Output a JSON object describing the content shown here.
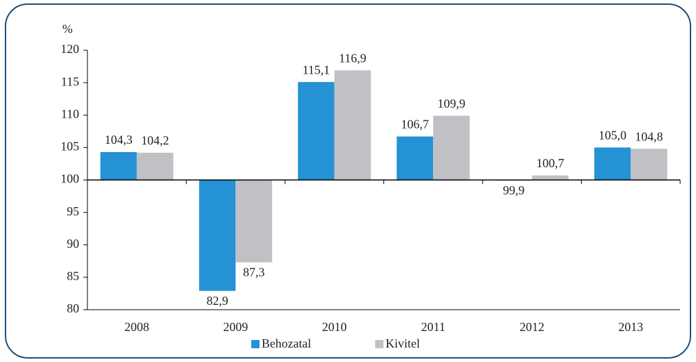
{
  "chart_data": {
    "type": "bar",
    "y_label": "%",
    "categories": [
      "2008",
      "2009",
      "2010",
      "2011",
      "2012",
      "2013"
    ],
    "series": [
      {
        "name": "Behozatal",
        "color": "#2492d4",
        "values": [
          104.3,
          82.9,
          115.1,
          106.7,
          99.9,
          105.0
        ],
        "value_labels": [
          "104,3",
          "82,9",
          "115,1",
          "106,7",
          "99,9",
          "105,0"
        ]
      },
      {
        "name": "Kivitel",
        "color": "#bfc1c4",
        "values": [
          104.2,
          87.3,
          116.9,
          109.9,
          100.7,
          104.8
        ],
        "value_labels": [
          "104,2",
          "87,3",
          "116,9",
          "109,9",
          "100,7",
          "104,8"
        ]
      }
    ],
    "ylim": [
      80,
      120
    ],
    "yticks": [
      80,
      85,
      90,
      95,
      100,
      105,
      110,
      115,
      120
    ],
    "baseline": 100,
    "legend": "bottom"
  }
}
